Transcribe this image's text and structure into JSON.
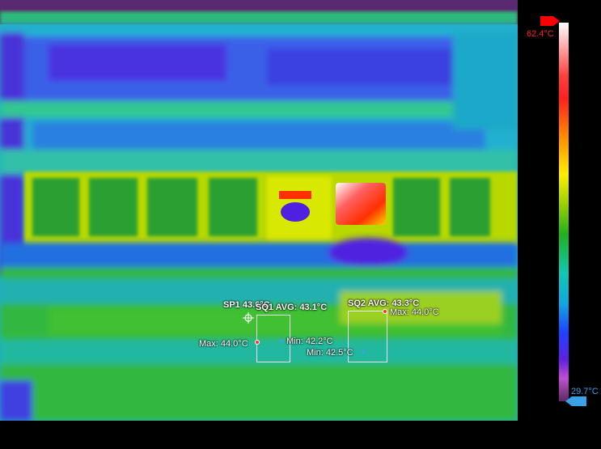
{
  "scale": {
    "max_label": "62.4°C",
    "min_label": "29.7°C",
    "palette": "iron-rainbow",
    "max_color": "#ff0000",
    "min_color": "#3aa0e8"
  },
  "spot": {
    "label": "SP1 43.6°C",
    "icon": "crosshair-icon"
  },
  "roi1": {
    "label": "SQ1  AVG: 43.1°C",
    "max_label": "Max: 44.0°C",
    "min_label": "Min: 42.2°C"
  },
  "roi2": {
    "label": "SQ2  AVG: 43.3°C",
    "max_label": "Max: 44.0°C",
    "min_label": "Min: 42.5°C"
  }
}
